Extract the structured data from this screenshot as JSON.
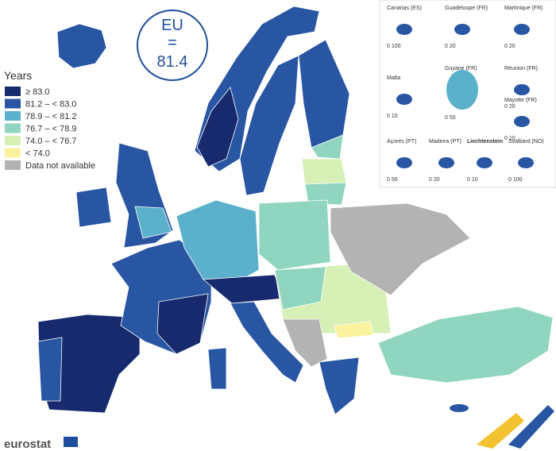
{
  "badge": {
    "label": "EU",
    "equals": "=",
    "value": "81.4"
  },
  "legend": {
    "title": "Years",
    "items": [
      {
        "label": "≥ 83.0",
        "color": "#172a6e"
      },
      {
        "label": "81.2 – < 83.0",
        "color": "#2956a3"
      },
      {
        "label": "78.9 – < 81.2",
        "color": "#5bb1cc"
      },
      {
        "label": "76.7 – < 78.9",
        "color": "#8fd5c0"
      },
      {
        "label": "74.0 – < 76.7",
        "color": "#d7f0b5"
      },
      {
        "label": "< 74.0",
        "color": "#fbf29d"
      },
      {
        "label": "Data not available",
        "color": "#b3b3b3"
      }
    ]
  },
  "insets": [
    {
      "name": "Canarias (ES)",
      "scale": "0 100"
    },
    {
      "name": "Guadeloupe (FR)",
      "scale": "0 20"
    },
    {
      "name": "Martinique (FR)",
      "scale": "0 20"
    },
    {
      "name": "Malta",
      "scale": "0 10"
    },
    {
      "name": "Guyane (FR)",
      "scale": "0 50"
    },
    {
      "name": "Réunion (FR)",
      "scale": "0 20"
    },
    {
      "name": "Mayotte (FR)",
      "scale": "0 10"
    },
    {
      "name": "Açores (PT)",
      "scale": "0 50"
    },
    {
      "name": "Madeira (PT)",
      "scale": "0 20"
    },
    {
      "name": "Liechtenstein",
      "scale": "0 10"
    },
    {
      "name": "Svalbard (NO)",
      "scale": "0 100"
    }
  ],
  "logo": "eurostat"
}
